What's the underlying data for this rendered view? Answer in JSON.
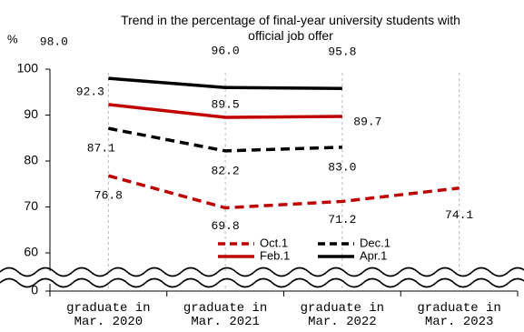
{
  "chart_data": {
    "type": "line",
    "title": "Trend in the percentage of final-year university students with official job offer",
    "y_label": "%",
    "categories": [
      "graduate in Mar. 2020",
      "graduate in Mar. 2021",
      "graduate in Mar. 2022",
      "graduate in Mar. 2023"
    ],
    "series": [
      {
        "name": "Oct.1",
        "color": "#c00000",
        "dash": true,
        "values": [
          76.8,
          69.8,
          71.2,
          74.1
        ],
        "value_labels": [
          "76.8",
          "69.8",
          "71.2",
          "74.1"
        ]
      },
      {
        "name": "Dec.1",
        "color": "#000000",
        "dash": true,
        "values": [
          87.1,
          82.2,
          83.0,
          null
        ],
        "value_labels": [
          "87.1",
          "82.2",
          "83.0",
          null
        ]
      },
      {
        "name": "Feb.1",
        "color": "#c00000",
        "dash": false,
        "values": [
          92.3,
          89.5,
          89.7,
          null
        ],
        "value_labels": [
          "92.3",
          "89.5",
          "89.7",
          null
        ]
      },
      {
        "name": "Apr.1",
        "color": "#000000",
        "dash": false,
        "values": [
          98.0,
          96.0,
          95.8,
          null
        ],
        "value_labels": [
          "98.0",
          "96.0",
          "95.8",
          null
        ]
      }
    ],
    "ylim": [
      0,
      100
    ],
    "yticks": [
      0,
      60,
      70,
      80,
      90,
      100
    ],
    "axis_break": true,
    "grid": false,
    "legend": "lower center"
  }
}
